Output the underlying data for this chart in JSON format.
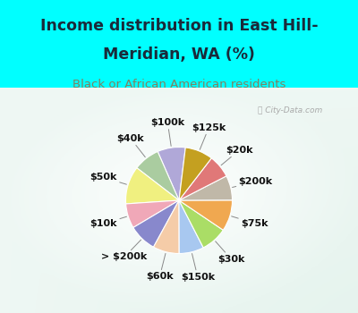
{
  "title_line1": "Income distribution in East Hill-",
  "title_line2": "Meridian, WA (%)",
  "subtitle": "Black or African American residents",
  "header_bg": "#00ffff",
  "chart_bg_color": "#d8ede5",
  "watermark": "City-Data.com",
  "labels": [
    "$100k",
    "$40k",
    "$50k",
    "$10k",
    "> $200k",
    "$60k",
    "$150k",
    "$30k",
    "$75k",
    "$200k",
    "$20k",
    "$125k"
  ],
  "values": [
    8.5,
    8.0,
    11.5,
    7.5,
    8.5,
    8.0,
    7.5,
    8.0,
    9.5,
    7.5,
    7.0,
    8.5
  ],
  "colors": [
    "#b0a8d8",
    "#aacca0",
    "#f0f080",
    "#f0a8b8",
    "#8888cc",
    "#f5cca8",
    "#a8c8f0",
    "#aadd66",
    "#f0a850",
    "#c0b8a8",
    "#e07878",
    "#c4a020"
  ],
  "title_color": "#1a2a3a",
  "subtitle_color": "#808060",
  "label_color": "#111111",
  "title_fontsize": 12.5,
  "subtitle_fontsize": 9.5,
  "label_fontsize": 8,
  "startangle": 83
}
